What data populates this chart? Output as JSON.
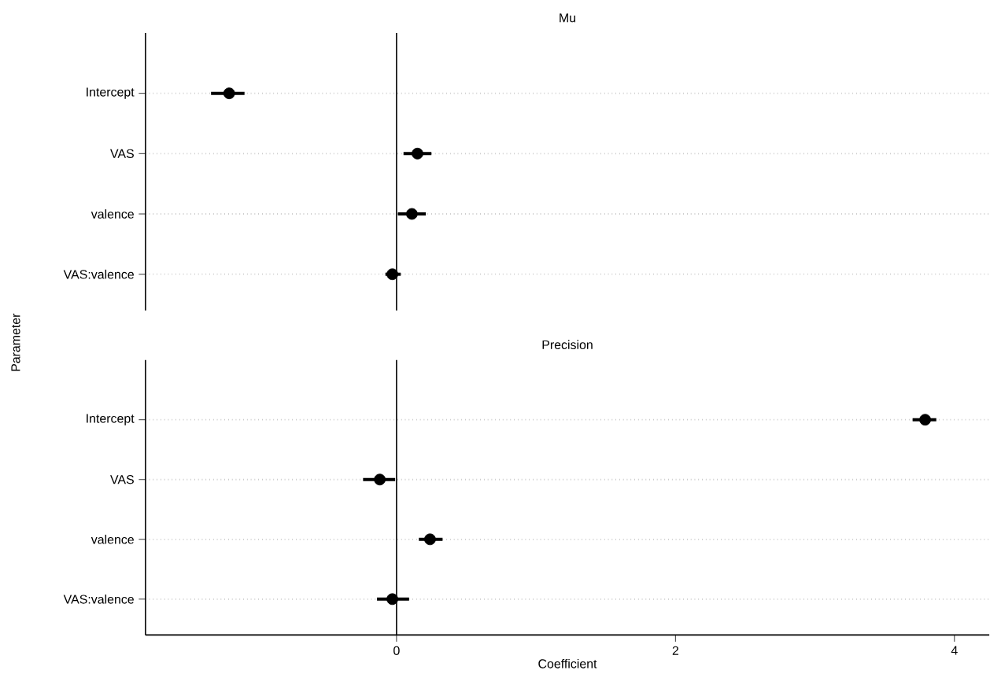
{
  "chart_data": [
    {
      "type": "scatter",
      "title": "Mu",
      "ylabel": "Parameter",
      "orientation": "horizontal",
      "categories": [
        "Intercept",
        "VAS",
        "valence",
        "VAS:valence"
      ],
      "values": [
        -1.2,
        0.15,
        0.11,
        -0.03
      ],
      "errors": [
        [
          -1.33,
          -1.09
        ],
        [
          0.05,
          0.25
        ],
        [
          0.01,
          0.21
        ],
        [
          -0.08,
          0.03
        ]
      ],
      "color": "#000000",
      "xlim": [
        -1.8,
        4.25
      ],
      "xticks": [
        0,
        2,
        4
      ],
      "tick_labels": "y",
      "grid": "y",
      "marker": "circle",
      "ref_lines": [
        {
          "axis": "x",
          "value": 0,
          "color": "#000000"
        }
      ]
    },
    {
      "type": "scatter",
      "title": "Precision",
      "xlabel": "Coefficient",
      "orientation": "horizontal",
      "categories": [
        "Intercept",
        "VAS",
        "valence",
        "VAS:valence"
      ],
      "values": [
        3.79,
        -0.12,
        0.24,
        -0.03
      ],
      "errors": [
        [
          3.7,
          3.87
        ],
        [
          -0.24,
          -0.01
        ],
        [
          0.16,
          0.33
        ],
        [
          -0.14,
          0.09
        ]
      ],
      "color": "#000000",
      "xlim": [
        -1.8,
        4.25
      ],
      "xticks": [
        0,
        2,
        4
      ],
      "grid": "y",
      "marker": "circle",
      "ref_lines": [
        {
          "axis": "x",
          "value": 0,
          "color": "#000000"
        }
      ]
    }
  ]
}
